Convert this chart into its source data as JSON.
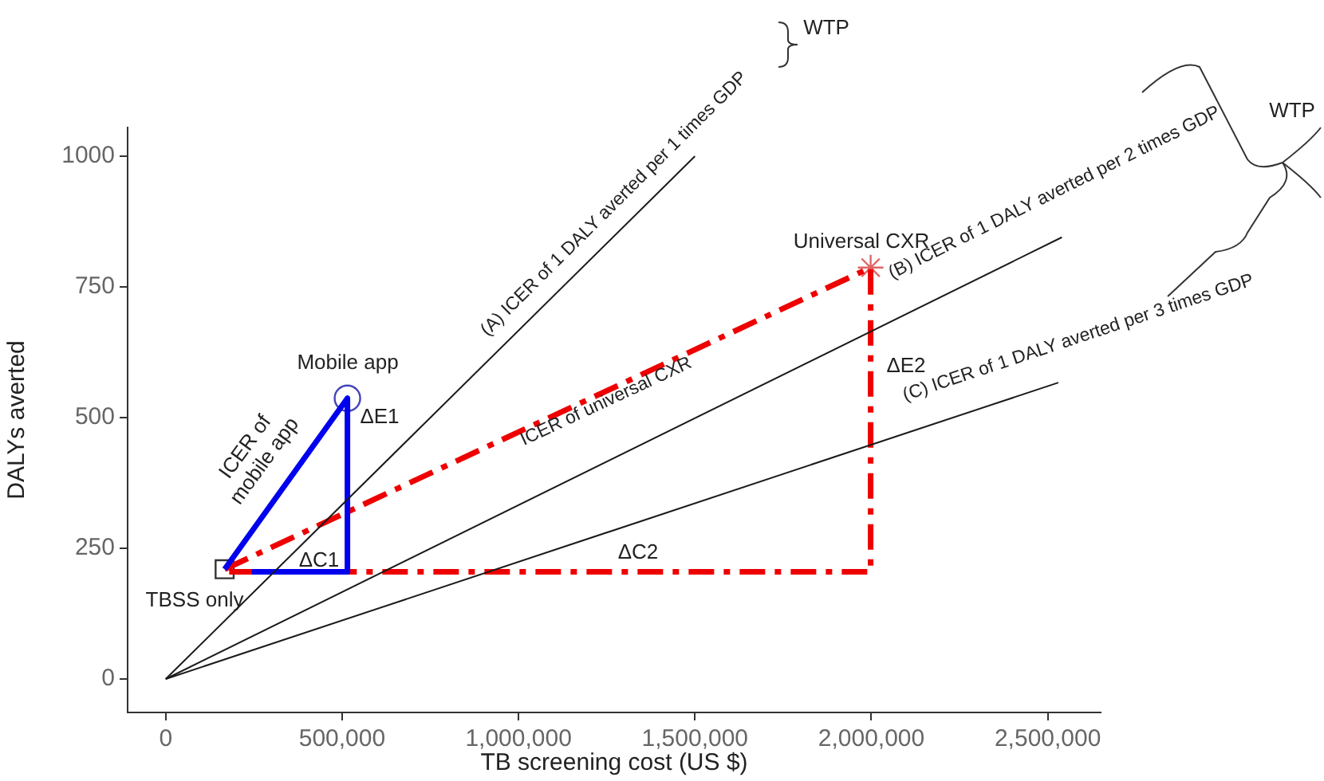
{
  "chart_data": {
    "type": "line",
    "xlabel": "TB screening cost (US $)",
    "ylabel": "DALYs averted",
    "xlim": [
      -108000,
      2650000
    ],
    "ylim": [
      -64,
      1055
    ],
    "xticks": [
      0,
      {
        "value": 500000,
        "label": "500,000"
      },
      {
        "value": 1000000,
        "label": "1,000,000"
      },
      {
        "value": 1500000,
        "label": "1,500,000"
      },
      {
        "value": 2000000,
        "label": "2,000,000"
      },
      {
        "value": 2500000,
        "label": "2,500,000"
      }
    ],
    "yticks": [
      0,
      250,
      500,
      750,
      1000
    ],
    "grid": false,
    "legend": false,
    "series": [
      {
        "type": "line",
        "color": "#1a1a1a",
        "x": [
          0,
          1500000
        ],
        "values": [
          0,
          1000
        ]
      },
      {
        "type": "line",
        "color": "#1a1a1a",
        "x": [
          0,
          2540000
        ],
        "values": [
          0,
          845
        ]
      },
      {
        "type": "line",
        "color": "#1a1a1a",
        "x": [
          0,
          2530000
        ],
        "values": [
          0,
          567
        ]
      },
      {
        "type": "line",
        "color": "#0000ee",
        "x": [
          167000,
          515000,
          515000,
          244000
        ],
        "values": [
          210,
          537,
          205,
          205
        ]
      },
      {
        "type": "line",
        "color": "#ee0000",
        "line_style": "dashed",
        "x": [
          167000,
          1998000,
          1998000,
          167000
        ],
        "values": [
          210,
          787,
          205,
          205
        ]
      },
      {
        "type": "scatter",
        "color": "#333333",
        "marker": "square",
        "x": [
          167000
        ],
        "values": [
          210
        ]
      },
      {
        "type": "scatter",
        "color": "#4444bb",
        "marker": "circle",
        "x": [
          515000
        ],
        "values": [
          537
        ]
      },
      {
        "type": "scatter",
        "color": "#e06666",
        "marker": "cross",
        "x": [
          1998000
        ],
        "values": [
          787
        ]
      }
    ],
    "annotations": [
      "(A) ICER of 1 DALY averted per 1 times GDP",
      "(B) ICER of 1 DALY averted per 2 times GDP",
      "(C) ICER of 1 DALY averted per 3 times GDP",
      "ICER of universal CXR",
      "ICER of\nmobile app",
      "ΔE1",
      "ΔC1",
      "ΔE2",
      "ΔC2",
      "Mobile app",
      "Universal CXR",
      "TBSS only",
      "WTP",
      "WTP"
    ]
  }
}
